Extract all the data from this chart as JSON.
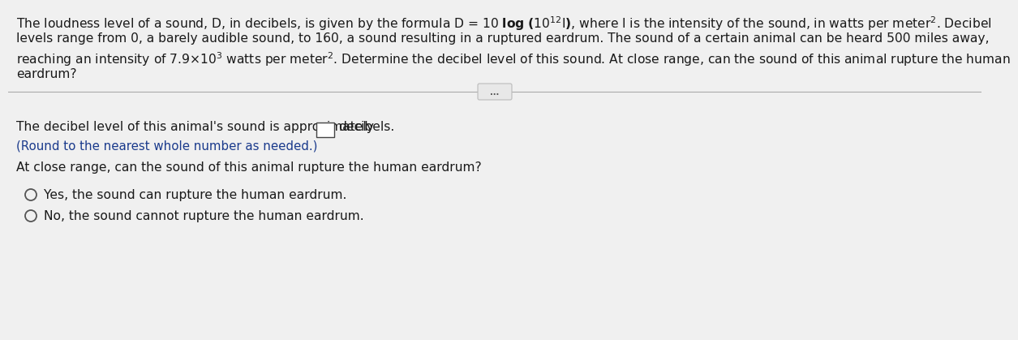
{
  "bg_color": "#f0f0f0",
  "content_bg": "#f0f0f0",
  "line1": "The loudness level of a sound, D, in decibels, is given by the formula D = 10 log $(10^{12}$I$)$, where I is the intensity of the sound, in watts per meter$^2$. Decibel",
  "line2": "levels range from 0, a barely audible sound, to 160, a sound resulting in a ruptured eardrum. The sound of a certain animal can be heard 500 miles away,",
  "line3": "reaching an intensity of 7.9$\\times$10$^3$ watts per meter$^2$. Determine the decibel level of this sound. At close range, can the sound of this animal rupture the human",
  "line4": "eardrum?",
  "divider_dots": "...",
  "answer_prefix": "The decibel level of this animal's sound is approximately",
  "answer_suffix": "decibels.",
  "round_note": "(Round to the nearest whole number as needed.)",
  "question2": "At close range, can the sound of this animal rupture the human eardrum?",
  "option1": "Yes, the sound can rupture the human eardrum.",
  "option2": "No, the sound cannot rupture the human eardrum.",
  "text_color": "#1a1a1a",
  "blue_color": "#1a3a8c",
  "divider_color": "#aaaaaa",
  "font_size": 11.2,
  "font_size_note": 10.8
}
